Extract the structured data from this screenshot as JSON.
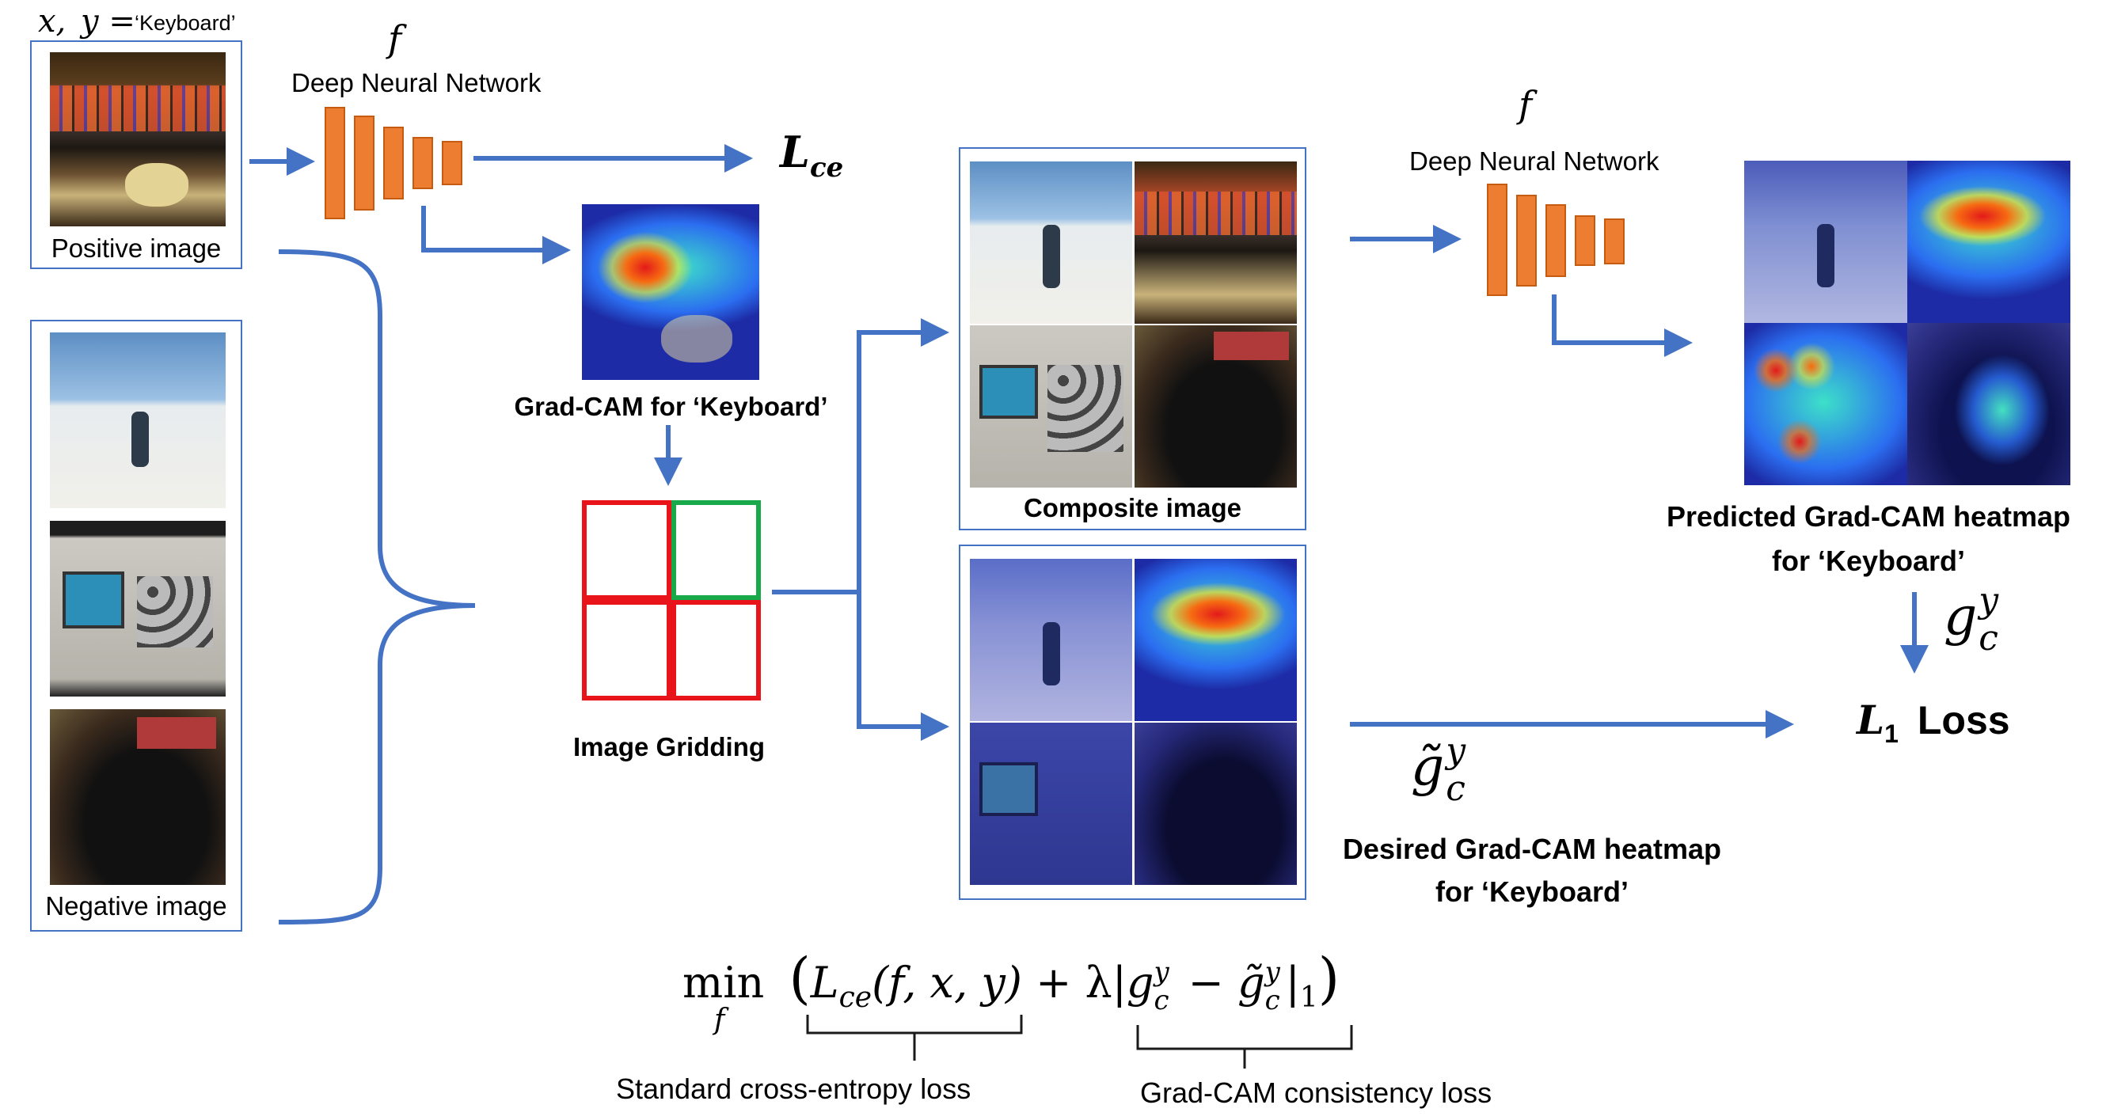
{
  "colors": {
    "arrow": "#4472c4",
    "network_layer": "#ed7d31",
    "grid_red": "#e8141a",
    "grid_green": "#17a94a"
  },
  "labels": {
    "input_x": "x,",
    "input_y_eq": "y =",
    "input_class": "‘Keyboard’",
    "positive_image": "Positive image",
    "negative_image": "Negative image",
    "f_symbol": "f",
    "dnn_left": "Deep Neural Network",
    "dnn_right": "Deep Neural Network",
    "lce_main": "L",
    "lce_sub": "ce",
    "gradcam_caption": "Grad-CAM for ‘Keyboard’",
    "image_gridding": "Image Gridding",
    "composite_image": "Composite image",
    "predicted_line1": "Predicted Grad-CAM heatmap",
    "predicted_line2": "for ‘Keyboard’",
    "desired_line1": "Desired Grad-CAM heatmap",
    "desired_line2": "for ‘Keyboard’",
    "g_symbol": "g",
    "g_super": "y",
    "g_sub": "c",
    "gt_symbol": "g̃",
    "l1_main": "L",
    "l1_sub": "1",
    "l1_word": "Loss"
  },
  "formula": {
    "min": "min",
    "min_sub": "f",
    "open": "(",
    "lce": "L",
    "lce_sub": "ce",
    "args": "(f, x, y)",
    "plus_lambda": "+ λ|",
    "g": "g",
    "g_sup": "y",
    "g_sub": "c",
    "minus": " − ",
    "gt": "g̃",
    "gt_sup": "y",
    "gt_sub": "c",
    "norm": "|",
    "norm_sub": "1",
    "close": ")"
  },
  "annotations": {
    "left_brace": "Standard cross-entropy loss",
    "right_brace": "Grad-CAM consistency loss"
  },
  "thumbnails": {
    "positive": "keyboard-and-mouse",
    "negative": [
      "person-on-beach",
      "oscilloscope",
      "black-dog"
    ]
  }
}
